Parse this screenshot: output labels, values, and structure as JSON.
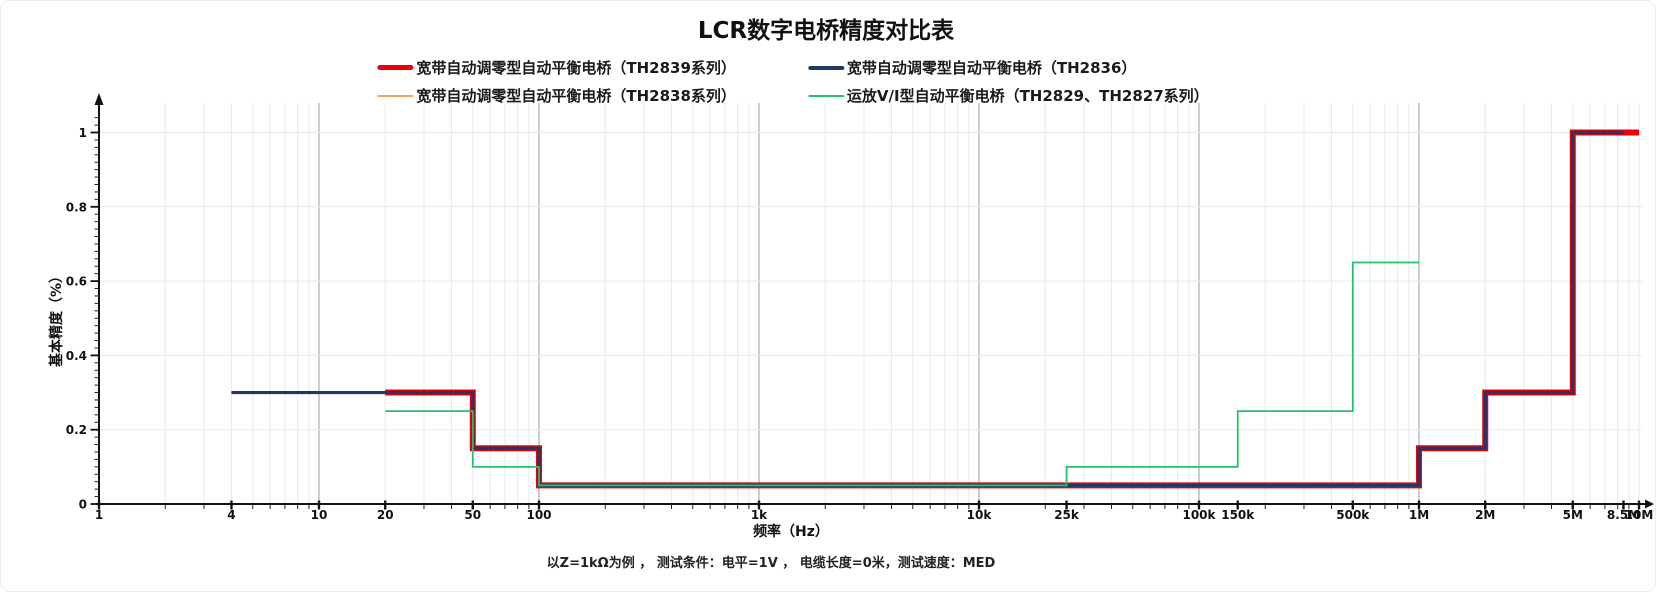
{
  "chart_data": {
    "type": "line",
    "title": "LCR数字电桥精度对比表",
    "xlabel": "频率（Hz）",
    "ylabel": "基本精度（%）",
    "footnote": "以Z=1kΩ为例 ， 测试条件：电平=1V ， 电缆长度=0米，测试速度：MED",
    "x_scale": "log",
    "x_range": [
      1,
      10000000
    ],
    "y_range": [
      0,
      1.05
    ],
    "grid": true,
    "legend_position": "top-center",
    "x_ticks": [
      {
        "value": 1,
        "label": "1"
      },
      {
        "value": 4,
        "label": "4"
      },
      {
        "value": 10,
        "label": "10"
      },
      {
        "value": 20,
        "label": "20"
      },
      {
        "value": 50,
        "label": "50"
      },
      {
        "value": 100,
        "label": "100"
      },
      {
        "value": 1000,
        "label": "1k"
      },
      {
        "value": 10000,
        "label": "10k"
      },
      {
        "value": 25000,
        "label": "25k"
      },
      {
        "value": 100000,
        "label": "100k"
      },
      {
        "value": 150000,
        "label": "150k"
      },
      {
        "value": 500000,
        "label": "500k"
      },
      {
        "value": 1000000,
        "label": "1M"
      },
      {
        "value": 2000000,
        "label": "2M"
      },
      {
        "value": 5000000,
        "label": "5M"
      },
      {
        "value": 8500000,
        "label": "8.5M"
      },
      {
        "value": 10000000,
        "label": "10M"
      }
    ],
    "y_ticks": [
      {
        "value": 0,
        "label": "0"
      },
      {
        "value": 0.2,
        "label": "0.2"
      },
      {
        "value": 0.4,
        "label": "0.4"
      },
      {
        "value": 0.6,
        "label": "0.6"
      },
      {
        "value": 0.8,
        "label": "0.8"
      },
      {
        "value": 1,
        "label": "1"
      }
    ],
    "series": [
      {
        "name": "宽带自动调零型自动平衡电桥（TH2839系列）",
        "color": "#e8000b",
        "line_width": 6,
        "legend_thickness": 5,
        "step": "after",
        "points": [
          [
            20,
            0.3
          ],
          [
            50,
            0.15
          ],
          [
            100,
            0.05
          ],
          [
            1000000,
            0.15
          ],
          [
            2000000,
            0.3
          ],
          [
            5000000,
            1.0
          ]
        ],
        "end_x": 10000000
      },
      {
        "name": "宽带自动调零型自动平衡电桥（TH2836）",
        "color": "#1f3864",
        "line_width": 3.2,
        "legend_thickness": 4,
        "step": "after",
        "points": [
          [
            4,
            0.3
          ],
          [
            50,
            0.15
          ],
          [
            100,
            0.05
          ],
          [
            1000000,
            0.15
          ],
          [
            2000000,
            0.3
          ],
          [
            5000000,
            1.0
          ]
        ],
        "end_x": 8500000
      },
      {
        "name": "宽带自动调零型自动平衡电桥（TH2838系列）",
        "color": "#f2a45c",
        "line_width": 1.6,
        "legend_thickness": 2,
        "step": "after",
        "points": [
          [
            20,
            0.3
          ],
          [
            50,
            0.15
          ],
          [
            100,
            0.05
          ],
          [
            1000000,
            0.15
          ]
        ],
        "end_x": 2000000
      },
      {
        "name": "运放V/I型自动平衡电桥（TH2829、TH2827系列）",
        "color": "#25c06d",
        "line_width": 1.8,
        "legend_thickness": 2,
        "step": "after",
        "points": [
          [
            20,
            0.25
          ],
          [
            50,
            0.1
          ],
          [
            100,
            0.05
          ],
          [
            25000,
            0.1
          ],
          [
            150000,
            0.25
          ],
          [
            500000,
            0.65
          ]
        ],
        "end_x": 1000000
      }
    ]
  }
}
